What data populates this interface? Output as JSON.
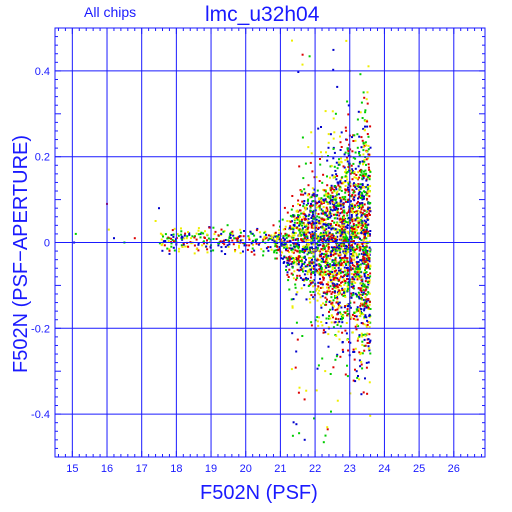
{
  "chart_data": {
    "type": "scatter",
    "title": "lmc_u32h04",
    "subtitle": "All chips",
    "xlabel": "F502N (PSF)",
    "ylabel": "F502N (PSF−APERTURE)",
    "xlim": [
      14.5,
      26.9
    ],
    "ylim": [
      -0.5,
      0.5
    ],
    "x_ticks": [
      "15",
      "16",
      "17",
      "18",
      "19",
      "20",
      "21",
      "22",
      "23",
      "24",
      "25",
      "26"
    ],
    "y_ticks": [
      "0.4",
      "0.2",
      "0",
      "-0.2",
      "-0.4"
    ],
    "x_tick_values": [
      15,
      16,
      17,
      18,
      19,
      20,
      21,
      22,
      23,
      24,
      25,
      26
    ],
    "y_tick_values": [
      0.4,
      0.2,
      0,
      -0.2,
      -0.4
    ],
    "grid": true,
    "series_colors": [
      "#0000cc",
      "#00cc00",
      "#dd0000",
      "#eeee00"
    ],
    "frame_color": "#1a1aff",
    "points": [
      [
        15.05,
        0.0
      ],
      [
        15.1,
        0.02
      ],
      [
        16.0,
        0.09
      ],
      [
        16.05,
        0.03
      ],
      [
        16.2,
        0.01
      ],
      [
        16.5,
        0.0
      ],
      [
        16.8,
        0.01
      ],
      [
        17.4,
        0.05
      ],
      [
        17.5,
        0.08
      ],
      [
        17.8,
        0.01
      ],
      [
        18.0,
        0.0
      ],
      [
        18.3,
        0.01
      ],
      [
        18.7,
        0.02
      ],
      [
        19.0,
        -0.02
      ],
      [
        19.3,
        0.03
      ],
      [
        19.8,
        0.0
      ],
      [
        20.2,
        0.02
      ],
      [
        20.5,
        -0.03
      ],
      [
        20.8,
        0.04
      ],
      [
        21.2,
        0.05
      ],
      [
        21.5,
        -0.05
      ],
      [
        21.8,
        0.1
      ],
      [
        22.0,
        -0.1
      ],
      [
        22.2,
        0.2
      ],
      [
        22.4,
        -0.2
      ],
      [
        22.6,
        0.3
      ],
      [
        22.8,
        -0.25
      ],
      [
        23.0,
        0.4
      ],
      [
        23.2,
        -0.3
      ],
      [
        23.4,
        0.35
      ],
      [
        23.5,
        0.1
      ],
      [
        22.9,
        0.47
      ],
      [
        21.7,
        -0.46
      ],
      [
        22.3,
        -0.45
      ],
      [
        23.1,
        0.25
      ]
    ]
  }
}
